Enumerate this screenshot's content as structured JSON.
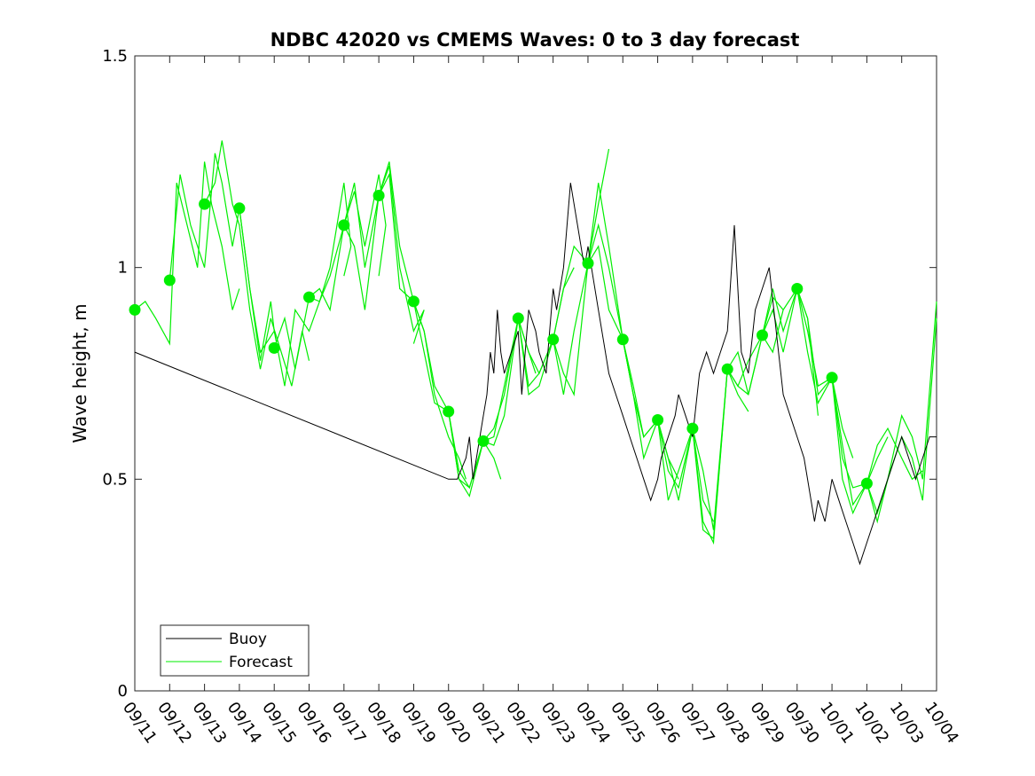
{
  "chart_data": {
    "type": "line",
    "title": "NDBC 42020 vs CMEMS Waves: 0 to 3 day forecast",
    "ylabel": "Wave height, m",
    "xlabel": "",
    "xlim": [
      "09/11",
      "10/04"
    ],
    "ylim": [
      0,
      1.5
    ],
    "yticks": [
      0,
      0.5,
      1,
      1.5
    ],
    "ytick_labels": [
      "0",
      "0.5",
      "1",
      "1.5"
    ],
    "xtick_labels": [
      "09/11",
      "09/12",
      "09/13",
      "09/14",
      "09/15",
      "09/16",
      "09/17",
      "09/18",
      "09/19",
      "09/20",
      "09/21",
      "09/22",
      "09/23",
      "09/24",
      "09/25",
      "09/26",
      "09/27",
      "09/28",
      "09/29",
      "09/30",
      "10/01",
      "10/02",
      "10/03",
      "10/04"
    ],
    "legend": {
      "placement": "bottom-left",
      "entries": [
        "Buoy",
        "Forecast"
      ]
    },
    "colors": {
      "buoy": "#000000",
      "forecast": "#00ee00",
      "axes": "#262626"
    },
    "grid": false,
    "buoy": {
      "name": "Buoy",
      "x": [
        0,
        9,
        9.25,
        9.5,
        9.6,
        9.7,
        9.8,
        9.9,
        10,
        10.1,
        10.2,
        10.3,
        10.4,
        10.5,
        10.6,
        10.8,
        11,
        11.1,
        11.3,
        11.5,
        11.6,
        11.8,
        12,
        12.1,
        12.3,
        12.5,
        12.7,
        12.9,
        13,
        13.1,
        13.3,
        13.5,
        13.6,
        13.8,
        14,
        14.2,
        14.4,
        14.6,
        14.8,
        15,
        15.1,
        15.3,
        15.5,
        15.6,
        15.8,
        16,
        16.2,
        16.4,
        16.6,
        16.8,
        17,
        17.2,
        17.4,
        17.6,
        17.8,
        18,
        18.2,
        18.4,
        18.6,
        18.8,
        19,
        19.2,
        19.4,
        19.5,
        19.6,
        19.8,
        20,
        20.2,
        20.4,
        20.6,
        20.8,
        21,
        21.2,
        21.4,
        21.6,
        21.8,
        22,
        22.2,
        22.4,
        22.6,
        22.8,
        23
      ],
      "values": [
        0.8,
        0.5,
        0.5,
        0.55,
        0.6,
        0.5,
        0.55,
        0.6,
        0.65,
        0.7,
        0.8,
        0.75,
        0.9,
        0.8,
        0.75,
        0.8,
        0.85,
        0.7,
        0.9,
        0.85,
        0.8,
        0.75,
        0.95,
        0.9,
        1.0,
        1.2,
        1.1,
        1.0,
        1.05,
        1.0,
        0.9,
        0.8,
        0.75,
        0.7,
        0.65,
        0.6,
        0.55,
        0.5,
        0.45,
        0.5,
        0.55,
        0.6,
        0.65,
        0.7,
        0.65,
        0.6,
        0.75,
        0.8,
        0.75,
        0.8,
        0.85,
        1.1,
        0.8,
        0.75,
        0.9,
        0.95,
        1.0,
        0.85,
        0.7,
        0.65,
        0.6,
        0.55,
        0.45,
        0.4,
        0.45,
        0.4,
        0.5,
        0.45,
        0.4,
        0.35,
        0.3,
        0.35,
        0.4,
        0.45,
        0.5,
        0.55,
        0.6,
        0.55,
        0.5,
        0.55,
        0.6,
        0.6
      ]
    },
    "forecast": {
      "name": "Forecast",
      "runs": [
        {
          "x": [
            0,
            0.3,
            0.6,
            1,
            1.2,
            1.5,
            1.8,
            2,
            2.2,
            2.5,
            2.8,
            3
          ],
          "values": [
            0.9,
            0.92,
            0.88,
            0.82,
            1.2,
            1.1,
            1.0,
            1.25,
            1.15,
            1.05,
            0.9,
            0.95
          ]
        },
        {
          "x": [
            1,
            1.3,
            1.6,
            2,
            2.3,
            2.5,
            2.8,
            3,
            3.3,
            3.6,
            3.9,
            4
          ],
          "values": [
            0.97,
            1.22,
            1.1,
            1.0,
            1.27,
            1.2,
            1.05,
            1.14,
            0.95,
            0.78,
            0.92,
            0.85
          ]
        },
        {
          "x": [
            2,
            2.3,
            2.5,
            2.8,
            3,
            3.3,
            3.6,
            3.9,
            4.2,
            4.5,
            4.8,
            5
          ],
          "values": [
            1.15,
            1.2,
            1.3,
            1.15,
            1.1,
            0.9,
            0.76,
            0.88,
            0.8,
            0.72,
            0.85,
            0.78
          ]
        },
        {
          "x": [
            3,
            3.3,
            3.6,
            4,
            4.3,
            4.6,
            5,
            5.3,
            5.6,
            6,
            6.2,
            6
          ],
          "values": [
            1.14,
            0.95,
            0.8,
            0.85,
            0.72,
            0.9,
            0.85,
            0.92,
            1.0,
            1.2,
            1.05,
            0.98
          ]
        },
        {
          "x": [
            4,
            4.3,
            4.6,
            5,
            5.3,
            5.6,
            6,
            6.3,
            6.6,
            7,
            7.2,
            7
          ],
          "values": [
            0.81,
            0.88,
            0.76,
            0.93,
            0.95,
            0.9,
            1.1,
            1.18,
            1.05,
            1.22,
            1.1,
            0.98
          ]
        },
        {
          "x": [
            5,
            5.3,
            5.6,
            6,
            6.3,
            6.6,
            7,
            7.3,
            7.6,
            8,
            8.3,
            8
          ],
          "values": [
            0.93,
            0.92,
            0.98,
            1.1,
            1.05,
            0.9,
            1.17,
            1.24,
            1.0,
            0.85,
            0.9,
            0.82
          ]
        },
        {
          "x": [
            6,
            6.3,
            6.6,
            7,
            7.3,
            7.6,
            8,
            8.3,
            8.6,
            9,
            9.3,
            9.5
          ],
          "values": [
            1.1,
            1.2,
            1.0,
            1.17,
            1.22,
            0.95,
            0.92,
            0.85,
            0.7,
            0.6,
            0.55,
            0.5
          ]
        },
        {
          "x": [
            7,
            7.3,
            7.6,
            8,
            8.3,
            8.6,
            9,
            9.3,
            9.6,
            10,
            10.3,
            10.5
          ],
          "values": [
            1.17,
            1.25,
            1.05,
            0.92,
            0.85,
            0.72,
            0.66,
            0.52,
            0.48,
            0.59,
            0.55,
            0.5
          ]
        },
        {
          "x": [
            8,
            8.3,
            8.6,
            9,
            9.3,
            9.6,
            10,
            10.3,
            10.6,
            11,
            11.3,
            11.5
          ],
          "values": [
            0.92,
            0.8,
            0.68,
            0.66,
            0.5,
            0.48,
            0.59,
            0.6,
            0.72,
            0.88,
            0.8,
            0.75
          ]
        },
        {
          "x": [
            9,
            9.3,
            9.6,
            10,
            10.3,
            10.6,
            11,
            11.3,
            11.6,
            12,
            12.3,
            12.6
          ],
          "values": [
            0.66,
            0.5,
            0.46,
            0.59,
            0.58,
            0.65,
            0.88,
            0.8,
            0.75,
            0.83,
            0.95,
            1.0
          ]
        },
        {
          "x": [
            10,
            10.3,
            10.6,
            11,
            11.3,
            11.6,
            12,
            12.3,
            12.6,
            13,
            13.3,
            13.6
          ],
          "values": [
            0.59,
            0.62,
            0.7,
            0.88,
            0.72,
            0.75,
            0.83,
            0.95,
            1.05,
            1.01,
            1.15,
            1.28
          ]
        },
        {
          "x": [
            11,
            11.3,
            11.6,
            12,
            12.3,
            12.6,
            13,
            13.3,
            13.6,
            14,
            14.3,
            14.6
          ],
          "values": [
            0.88,
            0.7,
            0.72,
            0.83,
            0.7,
            0.85,
            1.01,
            1.1,
            1.0,
            0.83,
            0.7,
            0.6
          ]
        },
        {
          "x": [
            12,
            12.3,
            12.6,
            13,
            13.3,
            13.6,
            14,
            14.3,
            14.6,
            15,
            15.3,
            15.6
          ],
          "values": [
            0.83,
            0.75,
            0.7,
            1.01,
            1.05,
            0.9,
            0.83,
            0.7,
            0.6,
            0.64,
            0.55,
            0.5
          ]
        },
        {
          "x": [
            13,
            13.3,
            13.6,
            14,
            14.3,
            14.6,
            15,
            15.3,
            15.6,
            16,
            16.3,
            16.6
          ],
          "values": [
            1.01,
            1.2,
            1.05,
            0.83,
            0.72,
            0.6,
            0.64,
            0.52,
            0.48,
            0.62,
            0.45,
            0.4
          ]
        },
        {
          "x": [
            14,
            14.3,
            14.6,
            15,
            15.3,
            15.6,
            16,
            16.3,
            16.6,
            17,
            17.3,
            17.6
          ],
          "values": [
            0.83,
            0.7,
            0.55,
            0.64,
            0.45,
            0.52,
            0.62,
            0.38,
            0.36,
            0.76,
            0.7,
            0.66
          ]
        },
        {
          "x": [
            15,
            15.3,
            15.6,
            16,
            16.3,
            16.6,
            17,
            17.3,
            17.6,
            18,
            18.3,
            18.6
          ],
          "values": [
            0.64,
            0.55,
            0.45,
            0.62,
            0.4,
            0.35,
            0.76,
            0.8,
            0.7,
            0.84,
            0.93,
            0.9
          ]
        },
        {
          "x": [
            16,
            16.3,
            16.6,
            17,
            17.3,
            17.6,
            18,
            18.3,
            18.6,
            19,
            19.3,
            19.6
          ],
          "values": [
            0.62,
            0.52,
            0.38,
            0.76,
            0.72,
            0.7,
            0.84,
            0.95,
            0.85,
            0.95,
            0.88,
            0.65
          ]
        },
        {
          "x": [
            17,
            17.3,
            17.6,
            18,
            18.3,
            18.6,
            19,
            19.3,
            19.6,
            20,
            20.3,
            20.6
          ],
          "values": [
            0.76,
            0.72,
            0.78,
            0.84,
            0.9,
            0.8,
            0.95,
            0.88,
            0.7,
            0.74,
            0.62,
            0.55
          ]
        },
        {
          "x": [
            18,
            18.3,
            18.6,
            19,
            19.3,
            19.6,
            20,
            20.3,
            20.6,
            21,
            21.3,
            21.6
          ],
          "values": [
            0.84,
            0.8,
            0.9,
            0.95,
            0.8,
            0.68,
            0.74,
            0.55,
            0.48,
            0.49,
            0.55,
            0.6
          ]
        },
        {
          "x": [
            19,
            19.3,
            19.6,
            20,
            20.3,
            20.6,
            21,
            21.3,
            21.6,
            22,
            22.3,
            22.6
          ],
          "values": [
            0.95,
            0.85,
            0.72,
            0.74,
            0.5,
            0.42,
            0.49,
            0.58,
            0.62,
            0.55,
            0.5,
            0.52
          ]
        },
        {
          "x": [
            20,
            20.3,
            20.6,
            21,
            21.3,
            21.6,
            22,
            22.3,
            22.6,
            23
          ],
          "values": [
            0.74,
            0.58,
            0.44,
            0.49,
            0.4,
            0.5,
            0.65,
            0.6,
            0.5,
            0.92
          ]
        },
        {
          "x": [
            21,
            21.3,
            21.6,
            22,
            22.3,
            22.6,
            23
          ],
          "values": [
            0.49,
            0.42,
            0.5,
            0.6,
            0.55,
            0.45,
            0.88
          ]
        }
      ],
      "markers": {
        "x": [
          0,
          1,
          2,
          3,
          4,
          5,
          6,
          7,
          8,
          9,
          10,
          11,
          12,
          13,
          14,
          15,
          16,
          17,
          18,
          19,
          20,
          21
        ],
        "values": [
          0.9,
          0.97,
          1.15,
          1.14,
          0.81,
          0.93,
          1.1,
          1.17,
          0.92,
          0.66,
          0.59,
          0.88,
          0.83,
          1.01,
          0.83,
          0.64,
          0.62,
          0.76,
          0.84,
          0.95,
          0.74,
          0.49
        ]
      }
    }
  }
}
